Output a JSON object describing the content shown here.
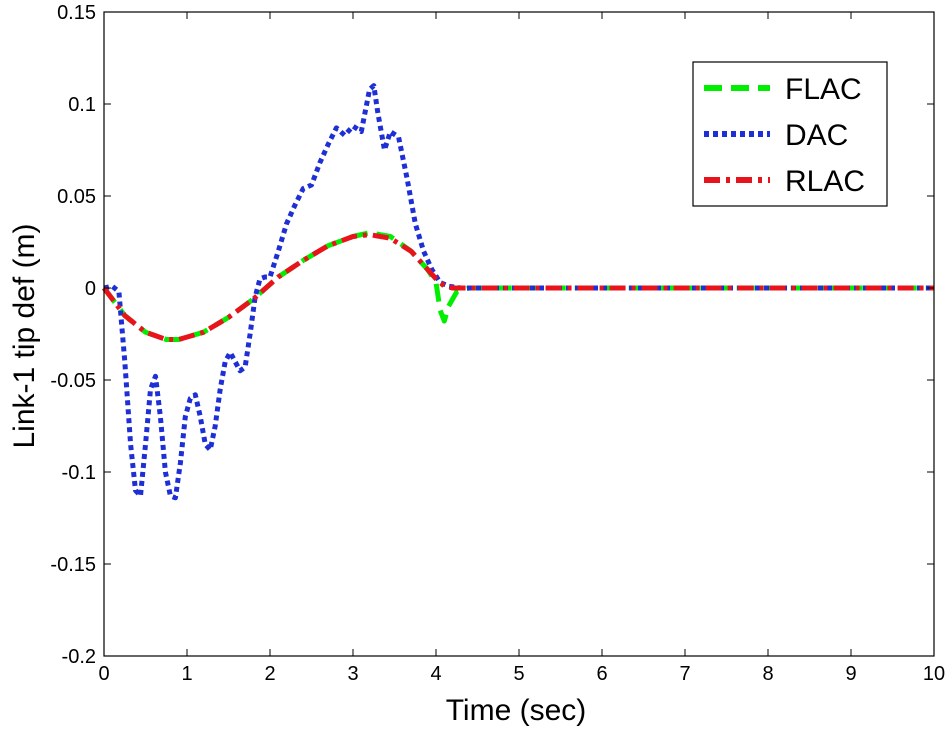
{
  "chart_data": {
    "type": "line",
    "xlabel": "Time (sec)",
    "ylabel": "Link-1 tip def (m)",
    "xlim": [
      0,
      10
    ],
    "ylim": [
      -0.2,
      0.15
    ],
    "xticks": [
      "0",
      "1",
      "2",
      "3",
      "4",
      "5",
      "6",
      "7",
      "8",
      "9",
      "10"
    ],
    "yticks": [
      "0.15",
      "0.1",
      "0.05",
      "0",
      "-0.05",
      "-0.1",
      "-0.15",
      "-0.2"
    ],
    "grid": false,
    "legend_position": "top-right",
    "series": [
      {
        "name": "FLAC",
        "color": "#00ee00",
        "dash": "dashed",
        "x": [
          0,
          0.25,
          0.5,
          0.75,
          0.9,
          1.2,
          1.5,
          1.8,
          2.1,
          2.4,
          2.7,
          3.0,
          3.2,
          3.45,
          3.7,
          3.9,
          4.0,
          4.05,
          4.1,
          4.15,
          4.25,
          4.4,
          4.6,
          5,
          6,
          7,
          8,
          9,
          10
        ],
        "y": [
          0,
          -0.015,
          -0.024,
          -0.028,
          -0.028,
          -0.024,
          -0.016,
          -0.006,
          0.006,
          0.015,
          0.023,
          0.028,
          0.03,
          0.028,
          0.02,
          0.01,
          0.003,
          -0.012,
          -0.018,
          -0.01,
          -0.002,
          0,
          0,
          0,
          0,
          0,
          0,
          0,
          0
        ]
      },
      {
        "name": "DAC",
        "color": "#1f2fd6",
        "dash": "dotted",
        "x": [
          0,
          0.1,
          0.18,
          0.25,
          0.32,
          0.38,
          0.44,
          0.5,
          0.56,
          0.62,
          0.68,
          0.74,
          0.8,
          0.86,
          0.92,
          0.98,
          1.04,
          1.1,
          1.16,
          1.22,
          1.28,
          1.34,
          1.4,
          1.46,
          1.52,
          1.58,
          1.64,
          1.7,
          1.76,
          1.82,
          1.88,
          1.94,
          2.0,
          2.1,
          2.2,
          2.3,
          2.4,
          2.5,
          2.6,
          2.7,
          2.8,
          2.9,
          3.0,
          3.1,
          3.2,
          3.25,
          3.3,
          3.38,
          3.45,
          3.55,
          3.65,
          3.75,
          3.85,
          3.95,
          4.05,
          4.15,
          4.3,
          4.5,
          5,
          6,
          7,
          8,
          9,
          10
        ],
        "y": [
          0,
          0.001,
          -0.002,
          -0.04,
          -0.085,
          -0.11,
          -0.113,
          -0.085,
          -0.055,
          -0.048,
          -0.07,
          -0.1,
          -0.113,
          -0.114,
          -0.095,
          -0.07,
          -0.06,
          -0.058,
          -0.07,
          -0.085,
          -0.088,
          -0.075,
          -0.055,
          -0.04,
          -0.035,
          -0.04,
          -0.045,
          -0.043,
          -0.025,
          -0.005,
          0.005,
          0.006,
          0.006,
          0.02,
          0.035,
          0.045,
          0.054,
          0.056,
          0.068,
          0.078,
          0.087,
          0.083,
          0.088,
          0.085,
          0.108,
          0.11,
          0.095,
          0.075,
          0.085,
          0.082,
          0.06,
          0.035,
          0.02,
          0.01,
          0.003,
          0.001,
          0,
          0,
          0,
          0,
          0,
          0,
          0,
          0
        ]
      },
      {
        "name": "RLAC",
        "color": "#e8141c",
        "dash": "dashdot",
        "x": [
          0,
          0.25,
          0.5,
          0.75,
          0.9,
          1.2,
          1.5,
          1.8,
          2.1,
          2.4,
          2.7,
          3.0,
          3.2,
          3.45,
          3.7,
          3.9,
          4.0,
          4.1,
          4.2,
          4.4,
          5,
          6,
          7,
          8,
          9,
          10
        ],
        "y": [
          0,
          -0.015,
          -0.024,
          -0.028,
          -0.028,
          -0.024,
          -0.016,
          -0.006,
          0.006,
          0.015,
          0.023,
          0.028,
          0.029,
          0.027,
          0.02,
          0.01,
          0.005,
          0.001,
          0,
          0,
          0,
          0,
          0,
          0,
          0,
          0
        ]
      }
    ]
  }
}
